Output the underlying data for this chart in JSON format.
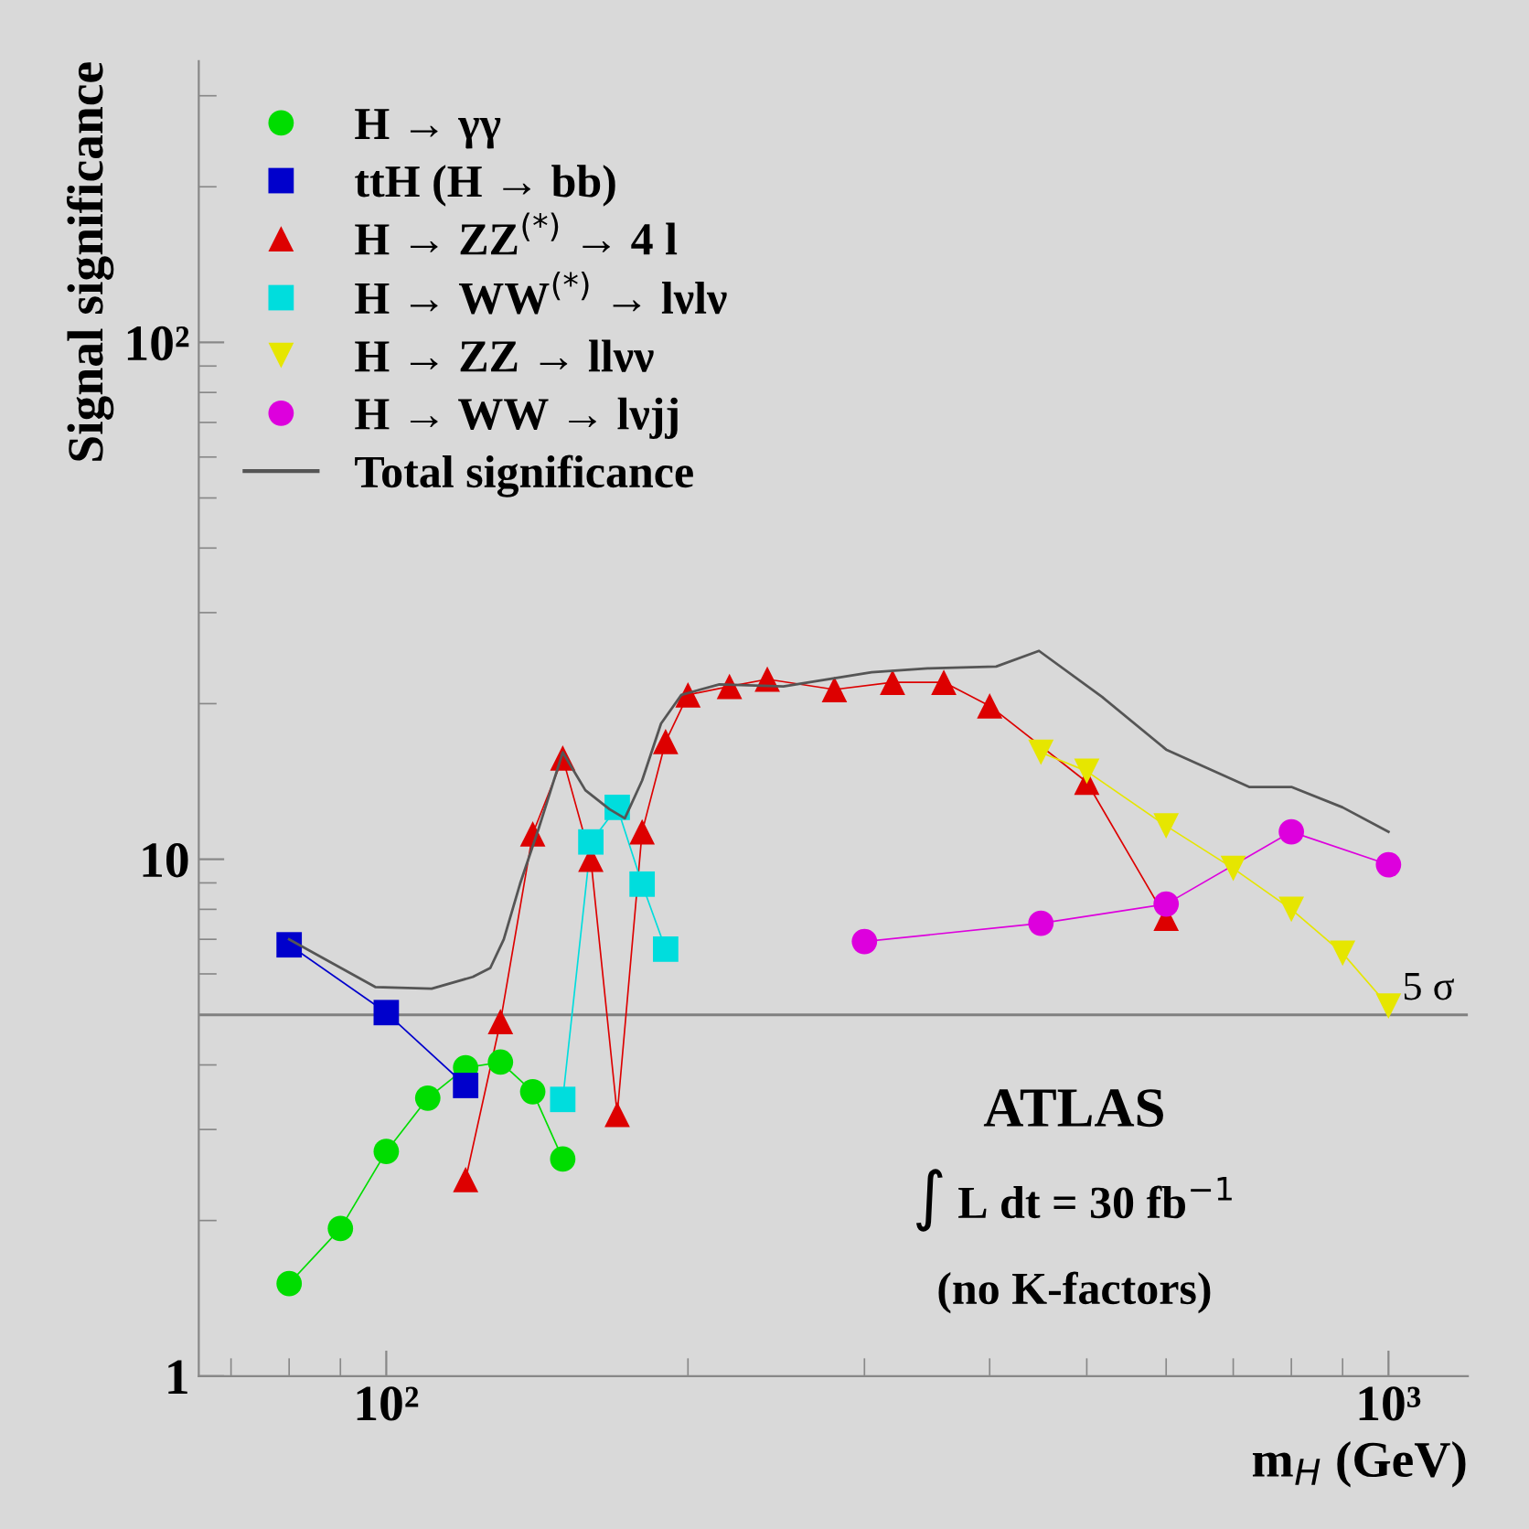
{
  "chart_data": {
    "type": "line",
    "xlabel": "m$_{H}$ (GeV)",
    "ylabel": "Signal significance",
    "log": "xy",
    "xlim": [
      65,
      1200
    ],
    "ylim": [
      1,
      350
    ],
    "xticks": [
      {
        "value": 100,
        "label": "10²"
      },
      {
        "value": 1000,
        "label": "10³"
      }
    ],
    "yticks": [
      1,
      10,
      {
        "value": 100,
        "label": "10²"
      }
    ],
    "grid": false,
    "legend": "top left",
    "ref_lines": [
      {
        "axis": "y",
        "value": 5,
        "label": "5 σ",
        "color": "#808080"
      }
    ],
    "annotations": [
      "ATLAS",
      "∫ L dt = 30 fb$^{−1}$",
      "(no K-factors)"
    ],
    "series": [
      {
        "name": "H → γγ",
        "color": "#00dd00",
        "marker": "circle",
        "x": [
          80,
          90,
          100,
          110,
          120,
          130,
          140,
          150
        ],
        "values": [
          1.51,
          1.93,
          2.72,
          3.45,
          3.95,
          4.05,
          3.55,
          2.63
        ]
      },
      {
        "name": "ttH (H → bb)",
        "color": "#0000cc",
        "marker": "square",
        "x": [
          80,
          100,
          120
        ],
        "values": [
          6.83,
          5.05,
          3.65
        ]
      },
      {
        "name": "H → ZZ$^{(*)}$ → 4 l",
        "color": "#dd0000",
        "marker": "triangle",
        "x": [
          120,
          130,
          140,
          150,
          160,
          170,
          180,
          190,
          200,
          220,
          240,
          280,
          320,
          360,
          400,
          500,
          600
        ],
        "values": [
          2.4,
          4.85,
          11.2,
          15.7,
          10.0,
          3.21,
          11.3,
          16.9,
          20.8,
          21.6,
          22.3,
          21.3,
          22.0,
          22.0,
          19.8,
          14.1,
          7.69
        ]
      },
      {
        "name": "H → WW$^{(*)}$ → lνlν",
        "color": "#00dddd",
        "marker": "square",
        "x": [
          150,
          160,
          170,
          180,
          190
        ],
        "values": [
          3.43,
          10.8,
          12.6,
          8.95,
          6.7
        ]
      },
      {
        "name": "H → ZZ → llνν",
        "color": "#e6e600",
        "marker": "triangle_down",
        "x": [
          450,
          500,
          600,
          700,
          800,
          900,
          1000
        ],
        "values": [
          16.1,
          14.8,
          11.6,
          9.6,
          8.0,
          6.58,
          5.2
        ]
      },
      {
        "name": "H → WW → lνjj",
        "color": "#dd00dd",
        "marker": "circle",
        "x": [
          300,
          450,
          600,
          800,
          1000
        ],
        "values": [
          6.93,
          7.52,
          8.19,
          11.3,
          9.76
        ]
      },
      {
        "name": "Total significance",
        "color": "#555555",
        "marker": "none",
        "x": [
          80,
          97.5,
          111,
          122,
          127,
          131,
          136,
          142,
          150,
          158,
          167,
          173,
          180,
          188,
          197,
          215,
          249,
          305,
          347,
          406,
          448,
          518,
          600,
          726,
          800,
          900,
          1000
        ],
        "values": [
          7.0,
          5.66,
          5.62,
          5.92,
          6.16,
          7.0,
          8.97,
          11.5,
          16.1,
          13.6,
          12.5,
          12.0,
          14.2,
          18.3,
          20.8,
          21.8,
          21.6,
          23.0,
          23.4,
          23.6,
          25.3,
          20.6,
          16.3,
          13.8,
          13.8,
          12.6,
          11.3
        ]
      }
    ]
  }
}
